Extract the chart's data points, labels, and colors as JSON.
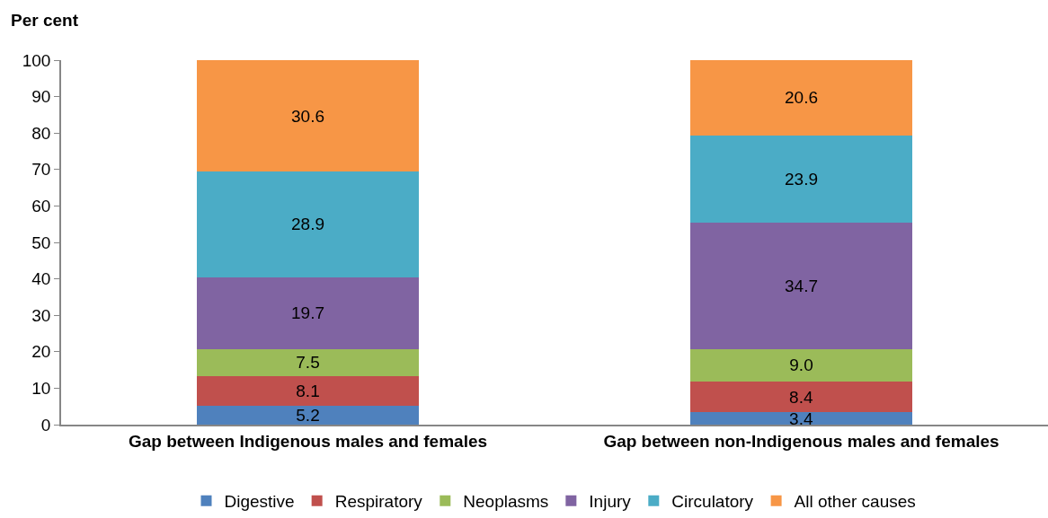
{
  "chart_data": {
    "type": "bar",
    "stacked": true,
    "ylabel": "Per cent",
    "categories": [
      "Gap between Indigenous males and females",
      "Gap between non-Indigenous males and females"
    ],
    "series": [
      {
        "name": "Digestive",
        "color": "#4f81bd",
        "values": [
          5.2,
          3.4
        ],
        "value_labels": [
          "5.2",
          "3.4"
        ]
      },
      {
        "name": "Respiratory",
        "color": "#c0504d",
        "values": [
          8.1,
          8.4
        ],
        "value_labels": [
          "8.1",
          "8.4"
        ]
      },
      {
        "name": "Neoplasms",
        "color": "#9bbb59",
        "values": [
          7.5,
          9.0
        ],
        "value_labels": [
          "7.5",
          "9.0"
        ]
      },
      {
        "name": "Injury",
        "color": "#8064a2",
        "values": [
          19.7,
          34.7
        ],
        "value_labels": [
          "19.7",
          "34.7"
        ]
      },
      {
        "name": "Circulatory",
        "color": "#4bacc6",
        "values": [
          28.9,
          23.9
        ],
        "value_labels": [
          "28.9",
          "23.9"
        ]
      },
      {
        "name": "All other causes",
        "color": "#f79646",
        "values": [
          30.6,
          20.6
        ],
        "value_labels": [
          "30.6",
          "20.6"
        ]
      }
    ],
    "ylim": [
      0,
      100
    ],
    "yticks": [
      0,
      10,
      20,
      30,
      40,
      50,
      60,
      70,
      80,
      90,
      100
    ],
    "grid": false,
    "legend": "bottom"
  }
}
